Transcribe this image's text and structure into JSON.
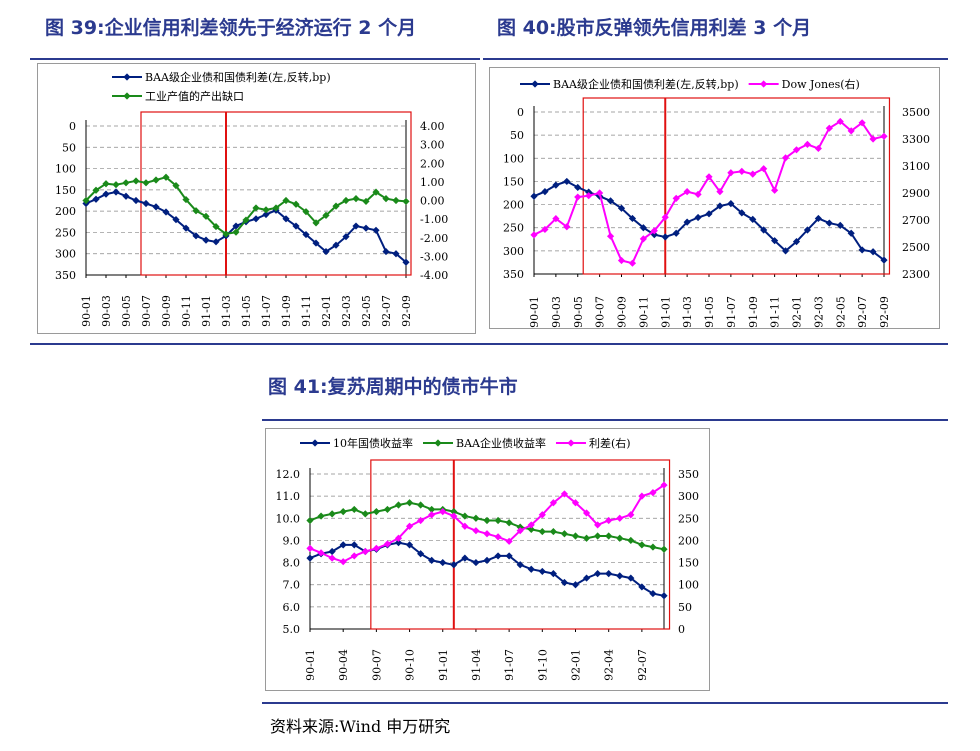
{
  "titles": {
    "fig39": "图 39:企业信用利差领先于经济运行 2 个月",
    "fig40": "图 40:股市反弹领先信用利差 3 个月",
    "fig41": "图 41:复苏周期中的债市牛市"
  },
  "source": "资料来源:Wind 申万研究",
  "colors": {
    "blue": "#001f7f",
    "green": "#1a8a1a",
    "magenta": "#ff00ff",
    "red": "#e01010",
    "title": "#2b3a8f"
  },
  "chart_data": [
    {
      "id": "fig39",
      "type": "line",
      "categories": [
        "90-01",
        "90-02",
        "90-03",
        "90-04",
        "90-05",
        "90-06",
        "90-07",
        "90-08",
        "90-09",
        "90-10",
        "90-11",
        "90-12",
        "91-01",
        "91-02",
        "91-03",
        "91-04",
        "91-05",
        "91-06",
        "91-07",
        "91-08",
        "91-09",
        "91-10",
        "91-11",
        "91-12",
        "92-01",
        "92-02",
        "92-03",
        "92-04",
        "92-05",
        "92-06",
        "92-07",
        "92-08",
        "92-09"
      ],
      "tick_labels": [
        "90-01",
        "90-03",
        "90-05",
        "90-07",
        "90-09",
        "90-11",
        "91-01",
        "91-03",
        "91-05",
        "91-07",
        "91-09",
        "91-11",
        "92-01",
        "92-03",
        "92-05",
        "92-07",
        "92-09"
      ],
      "left_axis": {
        "min": 0,
        "max": 350,
        "reversed": true,
        "ticks": [
          0,
          50,
          100,
          150,
          200,
          250,
          300,
          350
        ]
      },
      "right_axis": {
        "min": -4,
        "max": 4,
        "ticks": [
          "4.00",
          "3.00",
          "2.00",
          "1.00",
          "0.00",
          "-1.00",
          "-2.00",
          "-3.00",
          "-4.00"
        ]
      },
      "series": [
        {
          "name": "BAA级企业债和国债利差(左,反转,bp)",
          "axis": "left",
          "color": "#001f7f",
          "values": [
            182,
            172,
            160,
            155,
            165,
            175,
            182,
            190,
            202,
            220,
            240,
            258,
            268,
            272,
            258,
            235,
            225,
            218,
            208,
            198,
            218,
            235,
            255,
            275,
            295,
            280,
            260,
            235,
            240,
            245,
            295,
            300,
            320
          ]
        },
        {
          "name": "工业产值的产出缺口",
          "axis": "right",
          "color": "#1a8a1a",
          "values": [
            0.0,
            0.55,
            0.9,
            0.85,
            0.95,
            1.05,
            0.95,
            1.1,
            1.25,
            0.8,
            0.05,
            -0.55,
            -0.85,
            -1.4,
            -1.8,
            -1.7,
            -1.05,
            -0.4,
            -0.5,
            -0.4,
            0.0,
            -0.2,
            -0.6,
            -1.2,
            -0.8,
            -0.3,
            0.0,
            0.1,
            -0.05,
            0.45,
            0.1,
            0.0,
            -0.05
          ]
        }
      ],
      "highlight": {
        "from": "90-07",
        "to": "92-09",
        "line_at": "91-03"
      }
    },
    {
      "id": "fig40",
      "type": "line",
      "categories": [
        "90-01",
        "90-02",
        "90-03",
        "90-04",
        "90-05",
        "90-06",
        "90-07",
        "90-08",
        "90-09",
        "90-10",
        "90-11",
        "90-12",
        "91-01",
        "91-02",
        "91-03",
        "91-04",
        "91-05",
        "91-06",
        "91-07",
        "91-08",
        "91-09",
        "91-10",
        "91-11",
        "91-12",
        "92-01",
        "92-02",
        "92-03",
        "92-04",
        "92-05",
        "92-06",
        "92-07",
        "92-08",
        "92-09"
      ],
      "tick_labels": [
        "90-01",
        "90-03",
        "90-05",
        "90-07",
        "90-09",
        "90-11",
        "91-01",
        "91-03",
        "91-05",
        "91-07",
        "91-09",
        "91-11",
        "92-01",
        "92-03",
        "92-05",
        "92-07",
        "92-09"
      ],
      "left_axis": {
        "min": 0,
        "max": 350,
        "reversed": true,
        "ticks": [
          0,
          50,
          100,
          150,
          200,
          250,
          300,
          350
        ]
      },
      "right_axis": {
        "min": 2300,
        "max": 3500,
        "ticks": [
          3500,
          3300,
          3100,
          2900,
          2700,
          2500,
          2300
        ]
      },
      "series": [
        {
          "name": "BAA级企业债和国债利差(左,反转,bp)",
          "axis": "left",
          "color": "#001f7f",
          "values": [
            182,
            172,
            158,
            150,
            163,
            173,
            182,
            192,
            208,
            230,
            250,
            265,
            270,
            262,
            238,
            228,
            220,
            203,
            198,
            218,
            232,
            255,
            278,
            300,
            280,
            255,
            230,
            240,
            245,
            262,
            298,
            302,
            320
          ]
        },
        {
          "name": "Dow Jones(右)",
          "axis": "right",
          "color": "#ff00ff",
          "values": [
            2590,
            2630,
            2710,
            2650,
            2870,
            2880,
            2900,
            2580,
            2400,
            2380,
            2560,
            2620,
            2720,
            2860,
            2910,
            2890,
            3020,
            2910,
            3050,
            3060,
            3040,
            3080,
            2920,
            3160,
            3220,
            3260,
            3230,
            3380,
            3430,
            3360,
            3420,
            3300,
            3320
          ]
        }
      ],
      "highlight": {
        "from": "90-06",
        "to": "92-09",
        "line_at": "91-01"
      }
    },
    {
      "id": "fig41",
      "type": "line",
      "categories": [
        "90-01",
        "90-02",
        "90-03",
        "90-04",
        "90-05",
        "90-06",
        "90-07",
        "90-08",
        "90-09",
        "90-10",
        "90-11",
        "90-12",
        "91-01",
        "91-02",
        "91-03",
        "91-04",
        "91-05",
        "91-06",
        "91-07",
        "91-08",
        "91-09",
        "91-10",
        "91-11",
        "91-12",
        "92-01",
        "92-02",
        "92-03",
        "92-04",
        "92-05",
        "92-06",
        "92-07",
        "92-08",
        "92-09"
      ],
      "tick_labels": [
        "90-01",
        "90-04",
        "90-07",
        "90-10",
        "91-01",
        "91-04",
        "91-07",
        "91-10",
        "92-01",
        "92-04",
        "92-07"
      ],
      "left_axis": {
        "min": 5,
        "max": 12,
        "ticks": [
          "12.0",
          "11.0",
          "10.0",
          "9.0",
          "8.0",
          "7.0",
          "6.0",
          "5.0"
        ]
      },
      "right_axis": {
        "min": 0,
        "max": 350,
        "ticks": [
          350,
          300,
          250,
          200,
          150,
          100,
          50,
          0
        ]
      },
      "series": [
        {
          "name": "10年国债收益率",
          "axis": "left",
          "color": "#001f7f",
          "values": [
            8.2,
            8.4,
            8.5,
            8.8,
            8.8,
            8.5,
            8.6,
            8.8,
            8.9,
            8.8,
            8.4,
            8.1,
            8.0,
            7.9,
            8.2,
            8.0,
            8.1,
            8.3,
            8.3,
            7.9,
            7.7,
            7.6,
            7.5,
            7.1,
            7.0,
            7.3,
            7.5,
            7.5,
            7.4,
            7.3,
            6.9,
            6.6,
            6.5
          ]
        },
        {
          "name": "BAA企业债收益率",
          "axis": "left",
          "color": "#1a8a1a",
          "values": [
            9.9,
            10.1,
            10.2,
            10.3,
            10.4,
            10.2,
            10.3,
            10.4,
            10.6,
            10.7,
            10.6,
            10.4,
            10.4,
            10.3,
            10.1,
            10.0,
            9.9,
            9.9,
            9.8,
            9.6,
            9.5,
            9.4,
            9.4,
            9.3,
            9.2,
            9.1,
            9.2,
            9.2,
            9.1,
            9.0,
            8.8,
            8.7,
            8.6
          ]
        },
        {
          "name": "利差(右)",
          "axis": "right",
          "color": "#ff00ff",
          "values": [
            182,
            172,
            160,
            152,
            165,
            175,
            182,
            192,
            205,
            232,
            245,
            258,
            265,
            255,
            232,
            222,
            215,
            208,
            198,
            222,
            235,
            258,
            285,
            305,
            285,
            262,
            235,
            245,
            250,
            258,
            300,
            308,
            325
          ]
        }
      ],
      "highlight": {
        "from": "90-07",
        "to": "92-09",
        "line_at": "91-02"
      }
    }
  ]
}
